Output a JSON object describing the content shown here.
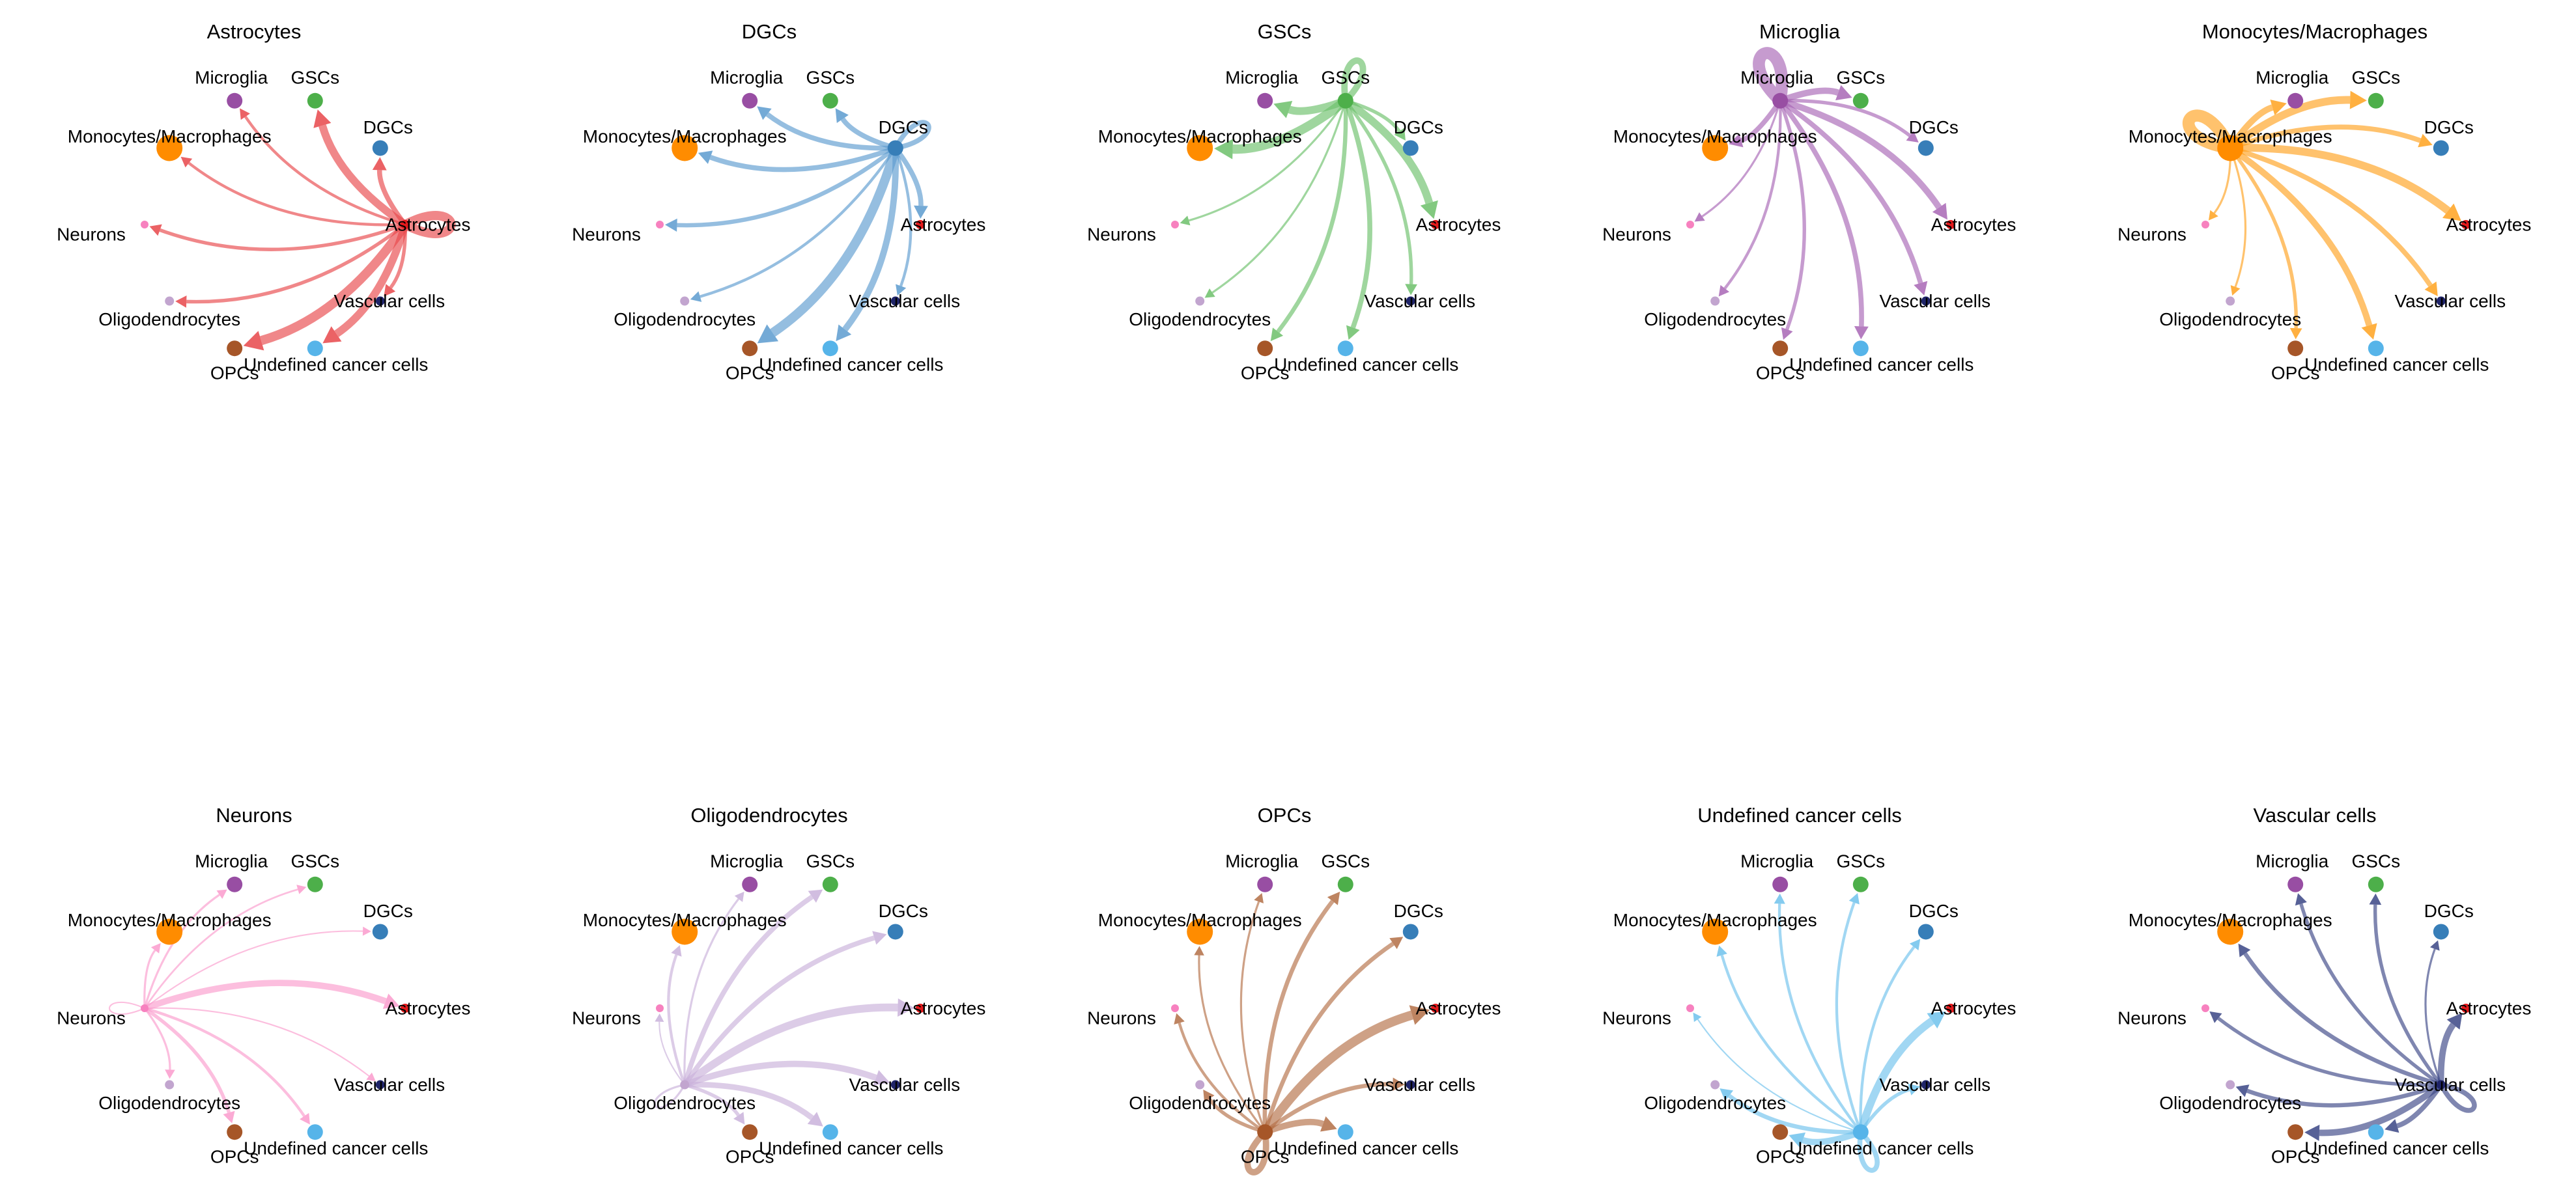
{
  "cell_types": [
    {
      "name": "Astrocytes",
      "color": "#E41A1C",
      "node_size": 7
    },
    {
      "name": "DGCs",
      "color": "#377EB8",
      "node_size": 12
    },
    {
      "name": "GSCs",
      "color": "#4DAF4A",
      "node_size": 12
    },
    {
      "name": "Microglia",
      "color": "#984EA3",
      "node_size": 12
    },
    {
      "name": "Monocytes/Macrophages",
      "color": "#FF8C00",
      "node_size": 20
    },
    {
      "name": "Neurons",
      "color": "#F781BF",
      "node_size": 6
    },
    {
      "name": "Oligodendrocytes",
      "color": "#C2A5CF",
      "node_size": 7
    },
    {
      "name": "OPCs",
      "color": "#A65628",
      "node_size": 12
    },
    {
      "name": "Undefined cancer cells",
      "color": "#56B4E9",
      "node_size": 12
    },
    {
      "name": "Vascular cells",
      "color": "#1F2469",
      "node_size": 7
    }
  ],
  "panels": [
    {
      "title": "Astrocytes",
      "source": 0,
      "edge_color": "#E8474A",
      "weights": [
        6,
        3,
        5,
        1.5,
        1.5,
        2,
        2,
        6,
        5,
        2
      ]
    },
    {
      "title": "DGCs",
      "source": 1,
      "edge_color": "#5C9BCF",
      "weights": [
        3,
        3,
        3,
        3,
        3,
        2.5,
        1.5,
        6,
        4,
        1.5
      ]
    },
    {
      "title": "GSCs",
      "source": 2,
      "edge_color": "#6CC06A",
      "weights": [
        5,
        2,
        4,
        5,
        6,
        1,
        1,
        2.5,
        3,
        2
      ]
    },
    {
      "title": "Microglia",
      "source": 3,
      "edge_color": "#A866B5",
      "weights": [
        4,
        2,
        4,
        8,
        3,
        1,
        1.5,
        2,
        3,
        3
      ]
    },
    {
      "title": "Monocytes/Macrophages",
      "source": 4,
      "edge_color": "#FFA21F",
      "weights": [
        5,
        3,
        5,
        4,
        8,
        1,
        1,
        2,
        4,
        3
      ]
    },
    {
      "title": "Neurons",
      "source": 5,
      "edge_color": "#FA9BCD",
      "weights": [
        4,
        0.5,
        0.8,
        1,
        1,
        0.5,
        1,
        2,
        1.5,
        0.5
      ]
    },
    {
      "title": "Oligodendrocytes",
      "source": 6,
      "edge_color": "#C9B1DA",
      "weights": [
        5,
        3,
        3,
        1,
        1.5,
        0.5,
        1,
        2,
        3.5,
        4
      ]
    },
    {
      "title": "OPCs",
      "source": 7,
      "edge_color": "#B36F45",
      "weights": [
        6,
        2.5,
        2.5,
        1,
        1,
        1.5,
        2,
        4,
        4,
        2.5
      ]
    },
    {
      "title": "Undefined cancer cells",
      "source": 8,
      "edge_color": "#6EC2EC",
      "weights": [
        5,
        1.5,
        1.5,
        1.5,
        1.5,
        0.5,
        2.5,
        4,
        3,
        2
      ]
    },
    {
      "title": "Vascular cells",
      "source": 9,
      "edge_color": "#3A4585",
      "weights": [
        4,
        1,
        2,
        2,
        2.5,
        2,
        2.5,
        4,
        3,
        3
      ]
    }
  ]
}
